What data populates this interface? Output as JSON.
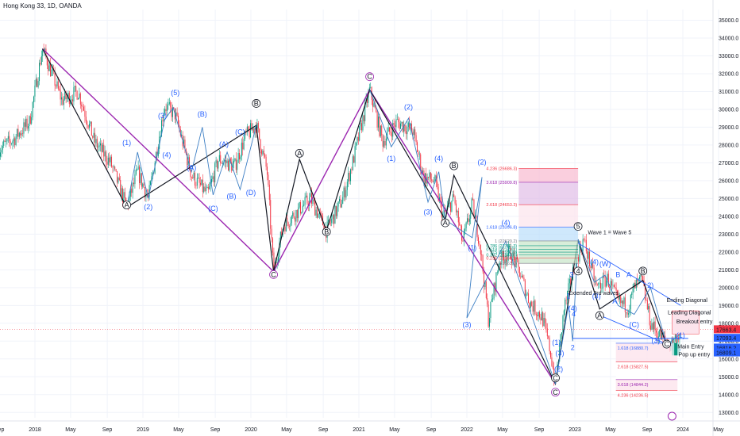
{
  "header": {
    "title": "Hong Kong 33, 1D, OANDA"
  },
  "colors": {
    "up": "#089981",
    "down": "#f23645",
    "purple": "#9c27b0",
    "blue": "#2962ff",
    "black": "#131722",
    "grid": "#f0f3fa"
  },
  "chart_data": {
    "type": "candlestick",
    "title": "Hong Kong 33, 1D, OANDA",
    "ylim": [
      12700,
      35600
    ],
    "y_ticks": [
      "35000.0",
      "34000.0",
      "33000.0",
      "32000.0",
      "31000.0",
      "30000.0",
      "29000.0",
      "28000.0",
      "27000.0",
      "26000.0",
      "25000.0",
      "24000.0",
      "23000.0",
      "22000.0",
      "21000.0",
      "20000.0",
      "19000.0",
      "18000.0",
      "17000.0",
      "16000.0",
      "15000.0",
      "14000.0",
      "13000.0"
    ],
    "x_ticks": [
      "Sep",
      "2018",
      "May",
      "Sep",
      "2019",
      "May",
      "Sep",
      "2020",
      "May",
      "Sep",
      "2021",
      "May",
      "Sep",
      "2022",
      "May",
      "Sep",
      "2023",
      "May",
      "Sep",
      "2024",
      "May"
    ],
    "price_path": [
      [
        2017.67,
        27800
      ],
      [
        2017.8,
        28300
      ],
      [
        2017.95,
        29300
      ],
      [
        2018.07,
        33400
      ],
      [
        2018.25,
        30500
      ],
      [
        2018.4,
        31000
      ],
      [
        2018.55,
        28200
      ],
      [
        2018.7,
        27000
      ],
      [
        2018.85,
        24500
      ],
      [
        2018.95,
        26500
      ],
      [
        2019.05,
        25000
      ],
      [
        2019.2,
        30200
      ],
      [
        2019.3,
        29700
      ],
      [
        2019.45,
        26300
      ],
      [
        2019.6,
        25200
      ],
      [
        2019.7,
        27200
      ],
      [
        2019.85,
        26800
      ],
      [
        2019.95,
        28500
      ],
      [
        2020.05,
        29100
      ],
      [
        2020.15,
        26500
      ],
      [
        2020.21,
        20900
      ],
      [
        2020.3,
        23500
      ],
      [
        2020.45,
        24400
      ],
      [
        2020.55,
        25000
      ],
      [
        2020.7,
        23200
      ],
      [
        2020.85,
        25000
      ],
      [
        2020.95,
        27200
      ],
      [
        2021.1,
        31100
      ],
      [
        2021.22,
        28200
      ],
      [
        2021.35,
        29300
      ],
      [
        2021.5,
        28800
      ],
      [
        2021.6,
        26200
      ],
      [
        2021.7,
        26000
      ],
      [
        2021.78,
        24000
      ],
      [
        2021.88,
        25000
      ],
      [
        2021.96,
        22500
      ],
      [
        2022.05,
        24700
      ],
      [
        2022.12,
        22500
      ],
      [
        2022.2,
        18200
      ],
      [
        2022.3,
        21500
      ],
      [
        2022.4,
        22000
      ],
      [
        2022.48,
        21000
      ],
      [
        2022.58,
        19200
      ],
      [
        2022.7,
        18300
      ],
      [
        2022.77,
        16500
      ],
      [
        2022.82,
        14600
      ],
      [
        2022.9,
        18800
      ],
      [
        2023.0,
        21300
      ],
      [
        2023.08,
        22700
      ],
      [
        2023.2,
        20000
      ],
      [
        2023.3,
        20500
      ],
      [
        2023.4,
        19200
      ],
      [
        2023.5,
        18900
      ],
      [
        2023.55,
        20000
      ],
      [
        2023.62,
        20400
      ],
      [
        2023.7,
        18000
      ],
      [
        2023.8,
        17200
      ],
      [
        2023.88,
        16800
      ],
      [
        2023.95,
        17300
      ],
      [
        2024.0,
        17663
      ]
    ],
    "annotations": {
      "wave_labels_blue": [
        {
          "text": "(1)",
          "x": 2018.85,
          "y": 28000
        },
        {
          "text": "(2)",
          "x": 2019.05,
          "y": 24400
        },
        {
          "text": "(3)",
          "x": 2019.18,
          "y": 29500
        },
        {
          "text": "(4)",
          "x": 2019.22,
          "y": 27300
        },
        {
          "text": "(5)",
          "x": 2019.3,
          "y": 30800
        },
        {
          "text": "(A)",
          "x": 2019.45,
          "y": 26600
        },
        {
          "text": "(B)",
          "x": 2019.55,
          "y": 29600
        },
        {
          "text": "(C)",
          "x": 2019.65,
          "y": 24300
        },
        {
          "text": "(A)",
          "x": 2019.75,
          "y": 27900
        },
        {
          "text": "(B)",
          "x": 2019.82,
          "y": 25000
        },
        {
          "text": "(C)",
          "x": 2019.9,
          "y": 28600
        },
        {
          "text": "(D)",
          "x": 2020.0,
          "y": 25200
        },
        {
          "text": "(1)",
          "x": 2021.3,
          "y": 27100
        },
        {
          "text": "(2)",
          "x": 2021.46,
          "y": 30000
        },
        {
          "text": "(3)",
          "x": 2021.64,
          "y": 24100
        },
        {
          "text": "(4)",
          "x": 2021.74,
          "y": 27100
        },
        {
          "text": "(1)",
          "x": 2022.05,
          "y": 22100
        },
        {
          "text": "(2)",
          "x": 2022.14,
          "y": 26900
        },
        {
          "text": "(3)",
          "x": 2022.0,
          "y": 17800
        },
        {
          "text": "(4)",
          "x": 2022.36,
          "y": 23500
        },
        {
          "text": "(1)",
          "x": 2022.83,
          "y": 16800
        },
        {
          "text": "(2)",
          "x": 2022.85,
          "y": 15300
        },
        {
          "text": "(3)",
          "x": 2022.86,
          "y": 16200
        },
        {
          "text": "1",
          "x": 2022.94,
          "y": 19400
        },
        {
          "text": "2",
          "x": 2022.98,
          "y": 16500
        },
        {
          "text": "3",
          "x": 2022.97,
          "y": 20600
        },
        {
          "text": "4",
          "x": 2022.99,
          "y": 18400
        },
        {
          "text": "(4)",
          "x": 2022.98,
          "y": 18700
        },
        {
          "text": "(4)",
          "x": 2023.18,
          "y": 21300
        },
        {
          "text": "(3)",
          "x": 2023.2,
          "y": 19400
        },
        {
          "text": "(W)",
          "x": 2023.28,
          "y": 21200
        },
        {
          "text": "B",
          "x": 2023.4,
          "y": 20600
        },
        {
          "text": "A",
          "x": 2023.5,
          "y": 20600
        },
        {
          "text": "A",
          "x": 2023.37,
          "y": 19100
        },
        {
          "text": "(C)",
          "x": 2023.55,
          "y": 17800
        },
        {
          "text": "2)",
          "x": 2023.7,
          "y": 20000
        },
        {
          "text": "(3)",
          "x": 2023.75,
          "y": 16900
        },
        {
          "text": "(1)",
          "x": 2023.98,
          "y": 17200
        }
      ],
      "wave_labels_black": [
        {
          "text": "A",
          "x": 2018.85,
          "y": 24500
        },
        {
          "text": "B",
          "x": 2020.05,
          "y": 30200
        },
        {
          "text": "C",
          "x": 2020.21,
          "y": 20600
        },
        {
          "text": "A",
          "x": 2020.45,
          "y": 27400
        },
        {
          "text": "B",
          "x": 2020.7,
          "y": 23000
        },
        {
          "text": "C",
          "x": 2021.1,
          "y": 31700
        },
        {
          "text": "A",
          "x": 2021.8,
          "y": 23500
        },
        {
          "text": "B",
          "x": 2021.88,
          "y": 26700
        },
        {
          "text": "C",
          "x": 2022.82,
          "y": 14800
        },
        {
          "text": "C",
          "x": 2022.82,
          "y": 14000
        },
        {
          "text": "5",
          "x": 2023.03,
          "y": 23300
        },
        {
          "text": "4",
          "x": 2023.03,
          "y": 20800
        },
        {
          "text": "A",
          "x": 2023.23,
          "y": 18300
        },
        {
          "text": "B",
          "x": 2023.63,
          "y": 20800
        },
        {
          "text": "C",
          "x": 2023.85,
          "y": 16700
        }
      ],
      "notes": [
        {
          "text": "Wave 1 = Wave 5",
          "x": 2023.12,
          "y": 23000
        },
        {
          "text": "Extended 3rd waves",
          "x": 2022.94,
          "y": 19600
        },
        {
          "text": "Ending Diagonal",
          "x": 2023.85,
          "y": 19200
        },
        {
          "text": "Leading Diagonal",
          "x": 2023.86,
          "y": 18500
        },
        {
          "text": "Breakout entry",
          "x": 2023.94,
          "y": 18000
        },
        {
          "text": "Main Entry",
          "x": 2023.95,
          "y": 16600
        },
        {
          "text": "Pop up entry",
          "x": 2023.96,
          "y": 16150
        }
      ],
      "fib_levels": [
        {
          "text": "4.236 (26686.3)",
          "y": 26686.3
        },
        {
          "text": "3.618 (25909.8)",
          "y": 25909.8
        },
        {
          "text": "2.618 (24653.3)",
          "y": 24653.3
        },
        {
          "text": "1.618 (23396.8)",
          "y": 23396.8
        },
        {
          "text": "1 (22620.2)",
          "y": 22620.2
        },
        {
          "text": "0.786 (22351.3)",
          "y": 22351.3
        },
        {
          "text": "0.618 (22140.2)",
          "y": 22140.2
        },
        {
          "text": "0.5 (21991.9)",
          "y": 21991.9
        },
        {
          "text": "0.382 (21843.6)",
          "y": 21843.6
        },
        {
          "text": "0.236 (21660.1)",
          "y": 21660.1
        },
        {
          "text": "0 (21363.7)",
          "y": 21363.7
        }
      ],
      "fib_levels_lower": [
        {
          "text": "1.618 (16880.7)",
          "y": 16880.7
        },
        {
          "text": "2.618 (15827.5)",
          "y": 15827.5
        },
        {
          "text": "3.618 (14844.2)",
          "y": 14844.2
        },
        {
          "text": "4.236 (14236.5)",
          "y": 14236.5
        }
      ],
      "price_tags": [
        {
          "text": "17663.4",
          "y": 17663.4,
          "color": "#f23645"
        },
        {
          "text": "17093.4",
          "y": 17093.4,
          "color": "#2962ff"
        },
        {
          "text": "16816.2",
          "y": 16816.2,
          "color": "#2962ff"
        },
        {
          "text": "16809.1",
          "y": 16809.1,
          "color": "#2962ff"
        }
      ]
    }
  }
}
